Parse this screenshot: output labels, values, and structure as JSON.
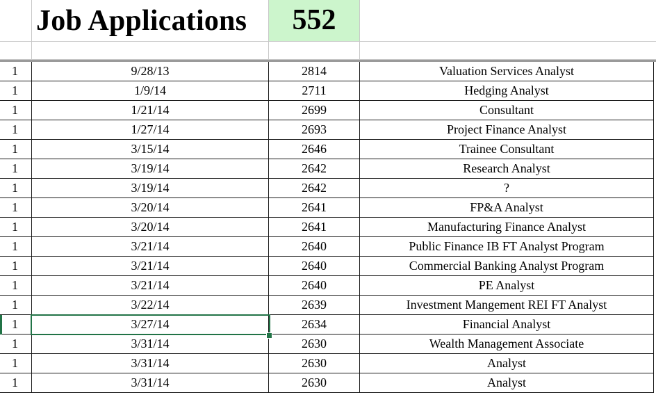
{
  "header": {
    "title": "Job Applications",
    "count": "552",
    "count_color": "#ccf5cc"
  },
  "selection": {
    "row_index": 13,
    "column": "date",
    "border_color": "#217346"
  },
  "rows": [
    {
      "flag": "1",
      "date": "9/28/13",
      "number": "2814",
      "title": "Valuation Services Analyst"
    },
    {
      "flag": "1",
      "date": "1/9/14",
      "number": "2711",
      "title": "Hedging Analyst"
    },
    {
      "flag": "1",
      "date": "1/21/14",
      "number": "2699",
      "title": "Consultant"
    },
    {
      "flag": "1",
      "date": "1/27/14",
      "number": "2693",
      "title": "Project Finance Analyst"
    },
    {
      "flag": "1",
      "date": "3/15/14",
      "number": "2646",
      "title": "Trainee Consultant"
    },
    {
      "flag": "1",
      "date": "3/19/14",
      "number": "2642",
      "title": "Research Analyst"
    },
    {
      "flag": "1",
      "date": "3/19/14",
      "number": "2642",
      "title": "?"
    },
    {
      "flag": "1",
      "date": "3/20/14",
      "number": "2641",
      "title": "FP&A Analyst"
    },
    {
      "flag": "1",
      "date": "3/20/14",
      "number": "2641",
      "title": "Manufacturing Finance Analyst"
    },
    {
      "flag": "1",
      "date": "3/21/14",
      "number": "2640",
      "title": "Public Finance IB FT Analyst Program"
    },
    {
      "flag": "1",
      "date": "3/21/14",
      "number": "2640",
      "title": "Commercial Banking Analyst Program"
    },
    {
      "flag": "1",
      "date": "3/21/14",
      "number": "2640",
      "title": "PE Analyst"
    },
    {
      "flag": "1",
      "date": "3/22/14",
      "number": "2639",
      "title": "Investment Mangement REI FT Analyst"
    },
    {
      "flag": "1",
      "date": "3/27/14",
      "number": "2634",
      "title": "Financial Analyst"
    },
    {
      "flag": "1",
      "date": "3/31/14",
      "number": "2630",
      "title": "Wealth Management Associate"
    },
    {
      "flag": "1",
      "date": "3/31/14",
      "number": "2630",
      "title": "Analyst"
    },
    {
      "flag": "1",
      "date": "3/31/14",
      "number": "2630",
      "title": "Analyst"
    }
  ]
}
